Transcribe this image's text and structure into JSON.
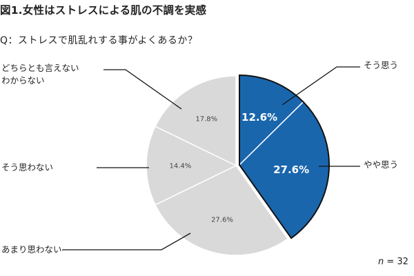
{
  "title": "図1.女性はストレスによる肌の不調を実感",
  "question": "Q：ストレスで肌乱れする事がよくあるか？",
  "n_note": "n = 32",
  "colors": {
    "positive": "#1a66ad",
    "negative": "#d9d9d9",
    "divider": "#ffffff",
    "outline": "#111111",
    "leader": "#111111"
  },
  "chart_data": {
    "type": "pie",
    "start_angle_deg": 90,
    "direction": "clockwise",
    "exploded_slices": [
      0,
      1
    ],
    "slices": [
      {
        "label": "そう思う",
        "value": 12.6,
        "value_label": "12.6%",
        "color": "#1a66ad",
        "text_color": "#ffffff"
      },
      {
        "label": "やや思う",
        "value": 27.6,
        "value_label": "27.6%",
        "color": "#1a66ad",
        "text_color": "#ffffff"
      },
      {
        "label": "あまり思わない",
        "value": 27.6,
        "value_label": "27.6%",
        "color": "#d9d9d9",
        "text_color": "#444444"
      },
      {
        "label": "そう思わない",
        "value": 14.4,
        "value_label": "14.4%",
        "color": "#d9d9d9",
        "text_color": "#444444"
      },
      {
        "label": "どちらとも言えない\nわからない",
        "value": 17.8,
        "value_label": "17.8%",
        "color": "#d9d9d9",
        "text_color": "#444444"
      }
    ]
  }
}
